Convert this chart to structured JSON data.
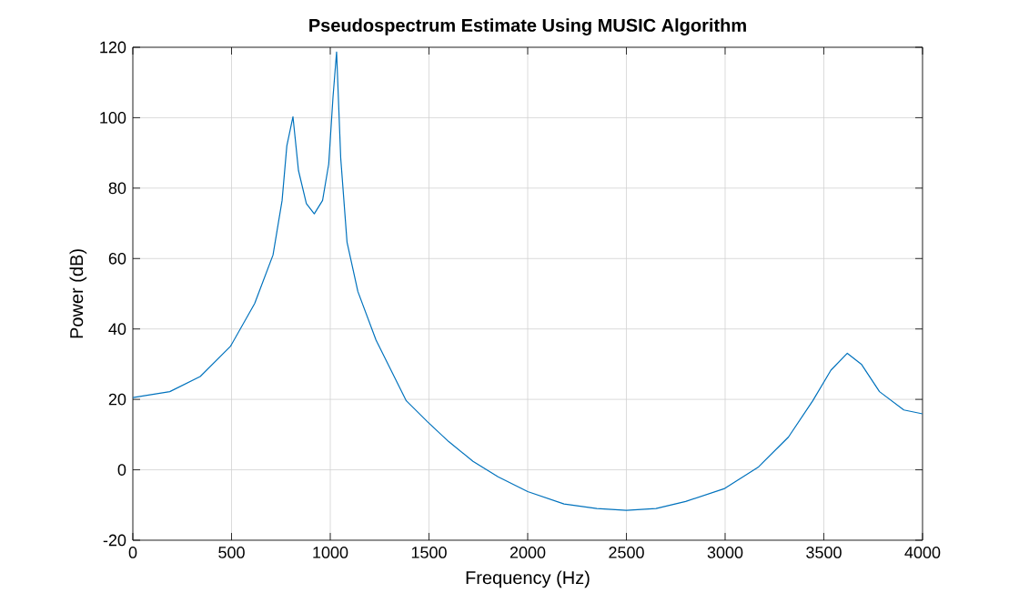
{
  "chart_data": {
    "type": "line",
    "title": "Pseudospectrum Estimate Using MUSIC Algorithm",
    "xlabel": "Frequency (Hz)",
    "ylabel": "Power (dB)",
    "x": [
      0,
      187,
      341,
      495,
      617,
      710,
      756,
      780,
      811,
      839,
      879,
      919,
      961,
      992,
      1014,
      1032,
      1053,
      1085,
      1140,
      1232,
      1385,
      1493,
      1600,
      1723,
      1850,
      2000,
      2184,
      2350,
      2500,
      2650,
      2800,
      2998,
      3167,
      3321,
      3444,
      3536,
      3619,
      3690,
      3782,
      3905,
      4000
    ],
    "series": [
      {
        "color": "#0072bd",
        "values": [
          20.5,
          22.2,
          26.5,
          35.1,
          47.2,
          61,
          76.5,
          92,
          100.3,
          85,
          75.6,
          72.7,
          76.5,
          86.8,
          106,
          118.7,
          88.5,
          64.6,
          50.6,
          36.8,
          19.6,
          13.6,
          8,
          2.4,
          -2,
          -6.2,
          -9.7,
          -11,
          -11.5,
          -11,
          -9,
          -5.3,
          0.7,
          9.3,
          19.6,
          28.3,
          33.1,
          30,
          22.2,
          17,
          15.9
        ]
      }
    ],
    "xlim": [
      0,
      4000
    ],
    "ylim": [
      -20,
      120
    ],
    "xticks": [
      0,
      500,
      1000,
      1500,
      2000,
      2500,
      3000,
      3500,
      4000
    ],
    "yticks": [
      -20,
      0,
      20,
      40,
      60,
      80,
      100,
      120
    ],
    "grid": true
  }
}
